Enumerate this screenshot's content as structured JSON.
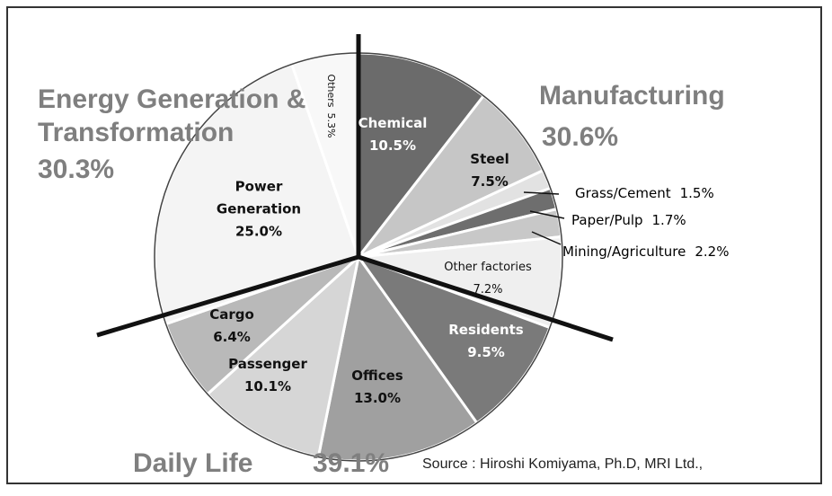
{
  "chart_data": {
    "type": "pie",
    "categories": [
      "Chemical",
      "Steel",
      "Grass/Cement",
      "Paper/Pulp",
      "Mining/Agriculture",
      "Other factories",
      "Residents",
      "Offices",
      "Passenger",
      "Cargo",
      "Power Generation",
      "Others"
    ],
    "values": [
      10.5,
      7.5,
      1.5,
      1.7,
      2.2,
      7.2,
      9.5,
      13.0,
      10.1,
      6.4,
      25.0,
      5.3
    ],
    "value_labels": [
      "10.5%",
      "7.5%",
      "1.5%",
      "1.7%",
      "2.2%",
      "7.2%",
      "9.5%",
      "13.0%",
      "10.1%",
      "6.4%",
      "25.0%",
      "5.3%"
    ],
    "colors": [
      "#6b6b6b",
      "#c6c6c6",
      "#e2e2e2",
      "#6e6e6e",
      "#c8c8c8",
      "#efefef",
      "#7a7a7a",
      "#a0a0a0",
      "#d6d6d6",
      "#b9b9b9",
      "#f4f4f4",
      "#f8f8f8"
    ],
    "groups": [
      {
        "name": "Energy Generation & Transformation",
        "value": 30.3,
        "value_label": "30.3%"
      },
      {
        "name": "Manufacturing",
        "value": 30.6,
        "value_label": "30.6%"
      },
      {
        "name": "Daily Life",
        "value": 39.1,
        "value_label": "39.1%"
      }
    ],
    "source": "Source : Hiroshi Komiyama, Ph.D, MRI Ltd.,"
  }
}
